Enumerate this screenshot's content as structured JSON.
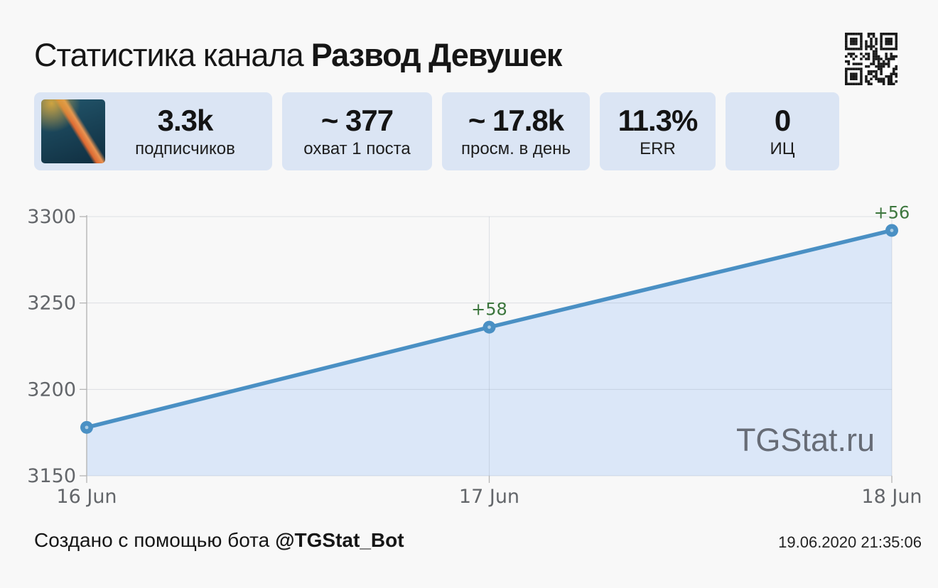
{
  "header": {
    "title_prefix": "Статистика канала",
    "channel_name": "Развод Девушек"
  },
  "stats": {
    "cards": [
      {
        "value": "3.3k",
        "label": "подписчиков"
      },
      {
        "value": "~ 377",
        "label": "охват 1 поста"
      },
      {
        "value": "~ 17.8k",
        "label": "просм. в день"
      },
      {
        "value": "11.3%",
        "label": "ERR"
      },
      {
        "value": "0",
        "label": "ИЦ"
      }
    ]
  },
  "chart_data": {
    "type": "area",
    "title": "",
    "xlabel": "",
    "ylabel": "",
    "x": [
      "16 Jun",
      "17 Jun",
      "18 Jun"
    ],
    "series": [
      {
        "name": "subscribers",
        "values": [
          3178,
          3236,
          3292
        ]
      }
    ],
    "point_labels": [
      "",
      "+58",
      "+56"
    ],
    "ylim": [
      3150,
      3300
    ],
    "yticks": [
      3150,
      3200,
      3250,
      3300
    ],
    "grid": true,
    "legend": false,
    "watermark": "TGStat.ru",
    "colors": {
      "line": "#4a90c4",
      "fill": "#dbe7f8",
      "delta_label": "#3c763d",
      "axis_text": "#63666a",
      "grid": "rgba(125,135,155,0.22)",
      "axis_line": "#b5b5b5",
      "watermark": "#676c76"
    }
  },
  "footer": {
    "created_prefix": "Создано с помощью бота",
    "bot_name": "@TGStat_Bot",
    "timestamp": "19.06.2020 21:35:06"
  }
}
